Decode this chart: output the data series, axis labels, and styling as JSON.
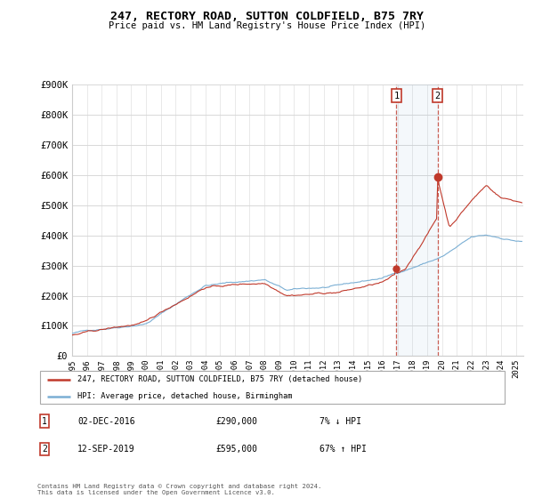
{
  "title": "247, RECTORY ROAD, SUTTON COLDFIELD, B75 7RY",
  "subtitle": "Price paid vs. HM Land Registry's House Price Index (HPI)",
  "ylabel_ticks": [
    "£0",
    "£100K",
    "£200K",
    "£300K",
    "£400K",
    "£500K",
    "£600K",
    "£700K",
    "£800K",
    "£900K"
  ],
  "ylim": [
    0,
    900000
  ],
  "xlim_start": 1995.0,
  "xlim_end": 2025.5,
  "transaction1": {
    "date_num": 2016.92,
    "price": 290000,
    "label": "1",
    "date_str": "02-DEC-2016",
    "price_str": "£290,000",
    "pct": "7% ↓ HPI"
  },
  "transaction2": {
    "date_num": 2019.7,
    "price": 595000,
    "label": "2",
    "date_str": "12-SEP-2019",
    "price_str": "£595,000",
    "pct": "67% ↑ HPI"
  },
  "hpi_line_color": "#7bafd4",
  "price_line_color": "#c0392b",
  "dashed_line_color": "#c0392b",
  "marker_color": "#c0392b",
  "background_color": "#ffffff",
  "grid_color": "#d8d8d8",
  "legend_label_red": "247, RECTORY ROAD, SUTTON COLDFIELD, B75 7RY (detached house)",
  "legend_label_blue": "HPI: Average price, detached house, Birmingham",
  "footer": "Contains HM Land Registry data © Crown copyright and database right 2024.\nThis data is licensed under the Open Government Licence v3.0."
}
